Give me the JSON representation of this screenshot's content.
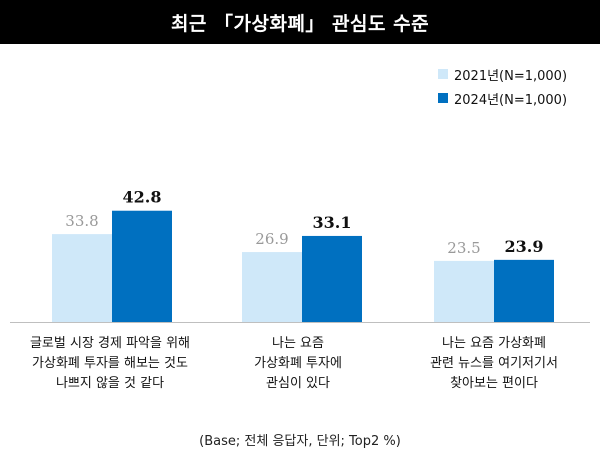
{
  "title": "최근 「가상화폐」 관심도 수준",
  "footnote": "(Base; 전체 응답자, 단위; Top2 %)",
  "colors": {
    "series_2021": "#cfe8f9",
    "series_2024": "#0070c0",
    "label_2021": "#999999",
    "label_2024": "#111111"
  },
  "chart_data": {
    "type": "bar",
    "title": "최근 「가상화폐」 관심도 수준",
    "categories": [
      "글로벌 시장 경제 파악을 위해\n가상화폐 투자를 해보는 것도\n나쁘지 않을 것 같다",
      "나는 요즘\n가상화폐 투자에\n관심이 있다",
      "나는 요즘 가상화폐\n관련 뉴스를 여기저기서\n찾아보는 편이다"
    ],
    "series": [
      {
        "name": "2021년(N=1,000)",
        "values": [
          33.8,
          26.9,
          23.5
        ],
        "labels": [
          "33.8",
          "26.9",
          "23.5"
        ]
      },
      {
        "name": "2024년(N=1,000)",
        "values": [
          42.8,
          33.1,
          23.9
        ],
        "labels": [
          "42.8",
          "33.1",
          "23.9"
        ]
      }
    ],
    "xlabel": "",
    "ylabel": "",
    "grid": false,
    "legend": "top-right"
  }
}
